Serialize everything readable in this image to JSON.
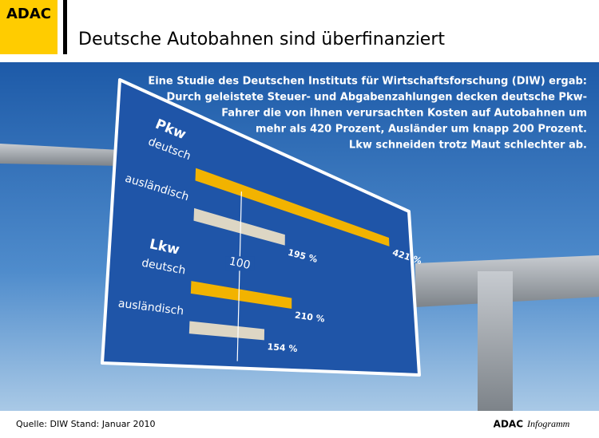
{
  "logo": "ADAC",
  "source": "Quelle: DIW  Stand: Januar 2010",
  "brand": {
    "name": "ADAC",
    "product": "Infogramm"
  },
  "chart_data": {
    "type": "bar",
    "orientation": "horizontal",
    "title": "Deutsche Autobahnen sind überfinanziert",
    "annotation": [
      "Eine Studie des Deutschen Instituts für Wirtschaftsforschung (DIW) ergab:",
      "Durch geleistete Steuer- und Abgabenzahlungen decken deutsche Pkw-",
      "Fahrer die von ihnen verursachten Kosten auf Autobahnen um",
      "mehr als 420 Prozent, Ausländer um knapp 200 Prozent.",
      "Lkw schneiden trotz Maut schlechter ab."
    ],
    "groups": [
      {
        "name": "Pkw",
        "categories": [
          "deutsch",
          "ausländisch"
        ],
        "values": [
          421,
          195
        ],
        "value_labels": [
          "421 %",
          "195 %"
        ]
      },
      {
        "name": "Lkw",
        "categories": [
          "deutsch",
          "ausländisch"
        ],
        "values": [
          210,
          154
        ],
        "value_labels": [
          "210 %",
          "154 %"
        ]
      }
    ],
    "colors": [
      "#f2b300",
      "#ddd6c4"
    ],
    "xlim": [
      0,
      450
    ],
    "xticks": [
      100
    ]
  }
}
